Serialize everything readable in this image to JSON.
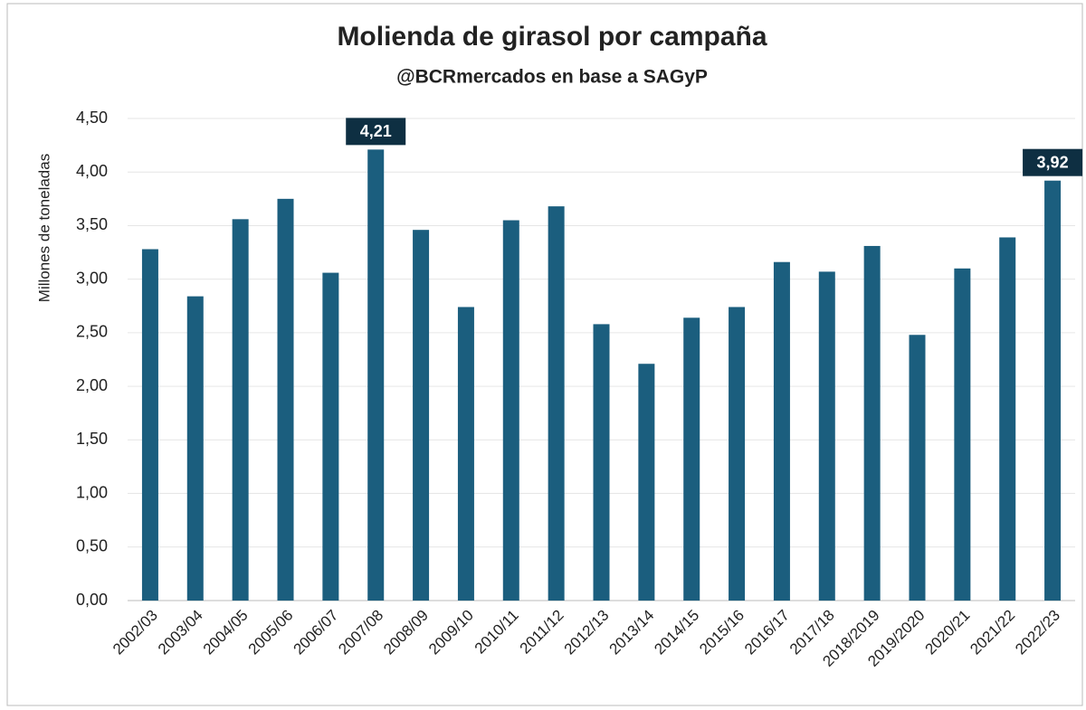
{
  "chart_data": {
    "type": "bar",
    "title": "Molienda de girasol por campaña",
    "subtitle": "@BCRmercados en base a SAGyP",
    "y_label": "Millones de toneladas",
    "categories": [
      "2002/03",
      "2003/04",
      "2004/05",
      "2005/06",
      "2006/07",
      "2007/08",
      "2008/09",
      "2009/10",
      "2010/11",
      "2011/12",
      "2012/13",
      "2013/14",
      "2014/15",
      "2015/16",
      "2016/17",
      "2017/18",
      "2018/2019",
      "2019/2020",
      "2020/21",
      "2021/22",
      "2022/23"
    ],
    "values": [
      3.28,
      2.84,
      3.56,
      3.75,
      3.06,
      4.21,
      3.46,
      2.74,
      3.55,
      3.68,
      2.58,
      2.21,
      2.64,
      2.74,
      3.16,
      3.07,
      3.31,
      2.48,
      3.1,
      3.39,
      3.92
    ],
    "value_labels": [
      null,
      null,
      null,
      null,
      null,
      "4,21",
      null,
      null,
      null,
      null,
      null,
      null,
      null,
      null,
      null,
      null,
      null,
      null,
      null,
      null,
      "3,92"
    ],
    "color": "#1b5e7e",
    "label_color": "#0e2f42",
    "ylim": [
      0,
      4.5
    ],
    "yticks": [
      {
        "value": 0,
        "label": "0,00"
      },
      {
        "value": 0.5,
        "label": "0,50"
      },
      {
        "value": 1,
        "label": "1,00"
      },
      {
        "value": 1.5,
        "label": "1,50"
      },
      {
        "value": 2,
        "label": "2,00"
      },
      {
        "value": 2.5,
        "label": "2,50"
      },
      {
        "value": 3,
        "label": "3,00"
      },
      {
        "value": 3.5,
        "label": "3,50"
      },
      {
        "value": 4,
        "label": "4,00"
      },
      {
        "value": 4.5,
        "label": "4,50"
      }
    ],
    "grid": true
  }
}
